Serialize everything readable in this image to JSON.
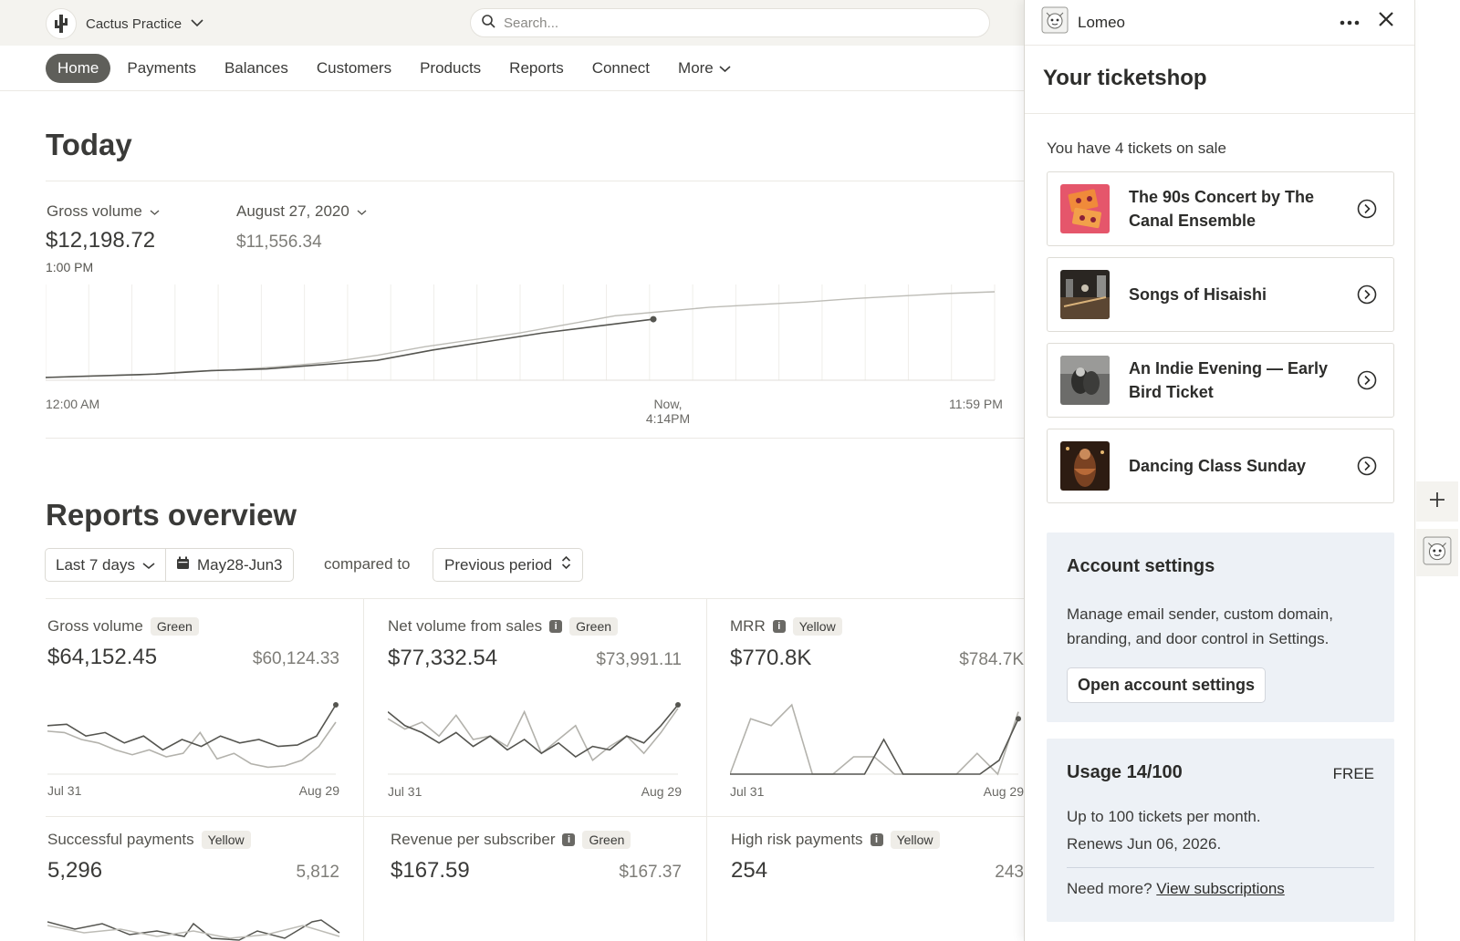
{
  "header": {
    "account_name": "Cactus Practice",
    "search_placeholder": "Search..."
  },
  "nav": {
    "items": [
      {
        "label": "Home",
        "active": true
      },
      {
        "label": "Payments"
      },
      {
        "label": "Balances"
      },
      {
        "label": "Customers"
      },
      {
        "label": "Products"
      },
      {
        "label": "Reports"
      },
      {
        "label": "Connect"
      },
      {
        "label": "More",
        "dropdown": true
      }
    ]
  },
  "today": {
    "title": "Today",
    "metric_label": "Gross volume",
    "metric_value": "$12,198.72",
    "metric_time": "1:00 PM",
    "compare_label": "August 27, 2020",
    "compare_value": "$11,556.34",
    "axis": {
      "start": "12:00 AM",
      "now": "Now,",
      "now_time": "4:14PM",
      "end": "11:59 PM"
    },
    "chart_data": {
      "type": "line",
      "x_range": [
        "12:00 AM",
        "11:59 PM"
      ],
      "series": [
        {
          "role": "today",
          "values": [
            0.0,
            0.02,
            0.04,
            0.08,
            0.1,
            0.15,
            0.2,
            0.32,
            0.42,
            0.52,
            0.6,
            0.68
          ]
        },
        {
          "role": "comparison",
          "values": [
            0.0,
            0.02,
            0.03,
            0.07,
            0.09,
            0.13,
            0.18,
            0.26,
            0.36,
            0.44,
            0.52,
            0.62,
            0.72,
            0.77,
            0.82,
            0.85,
            0.88,
            0.92,
            0.95,
            0.98,
            1.0
          ]
        }
      ],
      "colors": {
        "today": "#555550",
        "comparison": "#bdbcb6"
      }
    }
  },
  "reports": {
    "title": "Reports overview",
    "range_label": "Last 7 days",
    "date_label": "May28-Jun3",
    "compared_to": "compared to",
    "period_label": "Previous period",
    "cards": [
      {
        "title": "Gross volume",
        "badge": "Green",
        "info": false,
        "value": "$64,152.45",
        "compare": "$60,124.33",
        "start": "Jul 31",
        "end": "Aug 29",
        "chart_data": {
          "type": "line",
          "series": [
            {
              "role": "current",
              "values": [
                0.7,
                0.72,
                0.55,
                0.6,
                0.45,
                0.55,
                0.35,
                0.5,
                0.4,
                0.55,
                0.45,
                0.5,
                0.4,
                0.42,
                0.55,
                1.0
              ]
            },
            {
              "role": "previous",
              "values": [
                0.62,
                0.6,
                0.5,
                0.45,
                0.35,
                0.28,
                0.35,
                0.25,
                0.3,
                0.6,
                0.22,
                0.3,
                0.15,
                0.1,
                0.12,
                0.2,
                0.4,
                0.75
              ]
            }
          ]
        }
      },
      {
        "title": "Net volume from sales",
        "badge": "Green",
        "info": true,
        "value": "$77,332.54",
        "compare": "$73,991.11",
        "start": "Jul 31",
        "end": "Aug 29",
        "chart_data": {
          "type": "line",
          "series": [
            {
              "role": "current",
              "values": [
                0.9,
                0.7,
                0.6,
                0.45,
                0.6,
                0.4,
                0.55,
                0.35,
                0.5,
                0.3,
                0.45,
                0.25,
                0.4,
                0.35,
                0.55,
                0.45,
                0.7,
                1.0
              ]
            },
            {
              "role": "previous",
              "values": [
                0.8,
                0.65,
                0.75,
                0.55,
                0.85,
                0.5,
                0.55,
                0.4,
                0.9,
                0.3,
                0.5,
                0.7,
                0.2,
                0.4,
                0.55,
                0.3,
                0.6,
                0.95
              ]
            }
          ]
        }
      },
      {
        "title": "MRR",
        "badge": "Yellow",
        "info": true,
        "value": "$770.8K",
        "compare": "$784.7K",
        "start": "Jul 31",
        "end": "Aug 29",
        "chart_data": {
          "type": "line",
          "series": [
            {
              "role": "current",
              "values": [
                0.0,
                0.0,
                0.0,
                0.0,
                0.0,
                0.0,
                0.0,
                0.0,
                0.5,
                0.0,
                0.0,
                0.0,
                0.0,
                0.0,
                0.2,
                0.8
              ]
            },
            {
              "role": "previous",
              "values": [
                0.0,
                0.8,
                0.7,
                1.0,
                0.0,
                0.0,
                0.25,
                0.25,
                0.0,
                0.0,
                0.0,
                0.0,
                0.3,
                0.0,
                0.9
              ]
            }
          ]
        }
      },
      {
        "title": "Successful payments",
        "badge": "Yellow",
        "info": false,
        "value": "5,296",
        "compare": "5,812"
      },
      {
        "title": "Revenue per subscriber",
        "badge": "Green",
        "info": true,
        "value": "$167.59",
        "compare": "$167.37"
      },
      {
        "title": "High risk payments",
        "badge": "Yellow",
        "info": true,
        "value": "254",
        "compare": "243"
      }
    ]
  },
  "panel": {
    "app_name": "Lomeo",
    "title": "Your ticketshop",
    "tickets_on_sale": "You have 4 tickets on sale",
    "tickets": [
      {
        "label": "The 90s Concert by The Canal Ensemble",
        "thumb": "#e5566b"
      },
      {
        "label": "Songs of Hisaishi",
        "thumb": "#3b342c"
      },
      {
        "label": "An Indie Evening — Early Bird Ticket",
        "thumb": "#5a5a58"
      },
      {
        "label": "Dancing Class Sunday",
        "thumb": "#4a2e1e"
      }
    ],
    "account": {
      "title": "Account settings",
      "text": "Manage email sender, custom domain, branding, and door control in Settings.",
      "button": "Open account settings"
    },
    "usage": {
      "title": "Usage 14/100",
      "plan": "FREE",
      "line1": "Up to 100 tickets per month.",
      "line2": "Renews Jun 06, 2026.",
      "more_prefix": "Need more?",
      "more_link": "View subscriptions"
    }
  }
}
